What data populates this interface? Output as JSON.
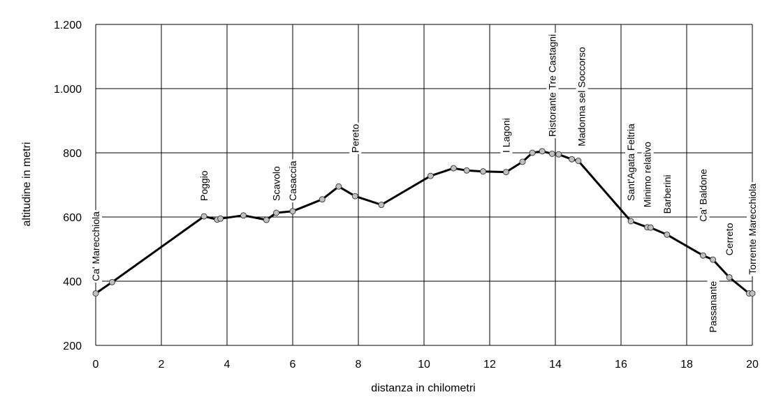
{
  "chart_data": {
    "type": "line",
    "title": "",
    "xlabel": "distanza in chilometri",
    "ylabel": "altitudine  in metri",
    "xlim": [
      0,
      20
    ],
    "ylim": [
      200,
      1200
    ],
    "x_ticks": [
      {
        "value": 0,
        "label": "0"
      },
      {
        "value": 2,
        "label": "2"
      },
      {
        "value": 4,
        "label": "4"
      },
      {
        "value": 6,
        "label": "6"
      },
      {
        "value": 8,
        "label": "8"
      },
      {
        "value": 10,
        "label": "10"
      },
      {
        "value": 12,
        "label": "12"
      },
      {
        "value": 14,
        "label": "14"
      },
      {
        "value": 16,
        "label": "16"
      },
      {
        "value": 18,
        "label": "18"
      },
      {
        "value": 20,
        "label": "20"
      }
    ],
    "y_ticks": [
      {
        "value": 200,
        "label": "200"
      },
      {
        "value": 400,
        "label": "400"
      },
      {
        "value": 600,
        "label": "600"
      },
      {
        "value": 800,
        "label": "800"
      },
      {
        "value": 1000,
        "label": "1.000"
      },
      {
        "value": 1200,
        "label": "1.200"
      }
    ],
    "grid": true,
    "series": [
      {
        "x": [
          0,
          0.5,
          3.3,
          3.7,
          3.8,
          4.5,
          5.2,
          5.5,
          6.0,
          6.9,
          7.4,
          7.9,
          8.7,
          10.2,
          10.9,
          11.3,
          11.8,
          12.5,
          13.0,
          13.3,
          13.6,
          13.9,
          14.1,
          14.5,
          14.7,
          16.3,
          16.8,
          16.9,
          17.4,
          18.5,
          18.8,
          19.3,
          19.9,
          20.0
        ],
        "y": [
          362,
          397,
          602,
          592,
          595,
          605,
          591,
          613,
          618,
          655,
          695,
          665,
          638,
          728,
          752,
          745,
          742,
          740,
          772,
          800,
          805,
          797,
          795,
          780,
          775,
          587,
          568,
          567,
          545,
          480,
          467,
          412,
          362,
          362
        ]
      }
    ],
    "annotations": [
      {
        "text": "Ca' Marecchiola",
        "x": 0,
        "y": 400
      },
      {
        "text": "Poggio",
        "x": 3.3,
        "y": 650
      },
      {
        "text": "Scavolo",
        "x": 5.5,
        "y": 650
      },
      {
        "text": "Casaccia",
        "x": 6.0,
        "y": 650
      },
      {
        "text": "Pereto",
        "x": 7.9,
        "y": 800
      },
      {
        "text": "I Lagoni",
        "x": 12.5,
        "y": 800
      },
      {
        "text": "Ristorante Tre Castagni",
        "x": 13.9,
        "y": 850
      },
      {
        "text": "Madonna sel Soccorso",
        "x": 14.8,
        "y": 820
      },
      {
        "text": "Sant'Agata Feltria",
        "x": 16.3,
        "y": 650
      },
      {
        "text": "Minimo relativo",
        "x": 16.8,
        "y": 630
      },
      {
        "text": "Barberini",
        "x": 17.4,
        "y": 610
      },
      {
        "text": "Ca' Baldone",
        "x": 18.5,
        "y": 585
      },
      {
        "text": "Passanante",
        "x": 18.8,
        "y": 240
      },
      {
        "text": "Cerreto",
        "x": 19.3,
        "y": 480
      },
      {
        "text": "Torrente Marecchiola",
        "x": 20.0,
        "y": 420
      }
    ]
  }
}
